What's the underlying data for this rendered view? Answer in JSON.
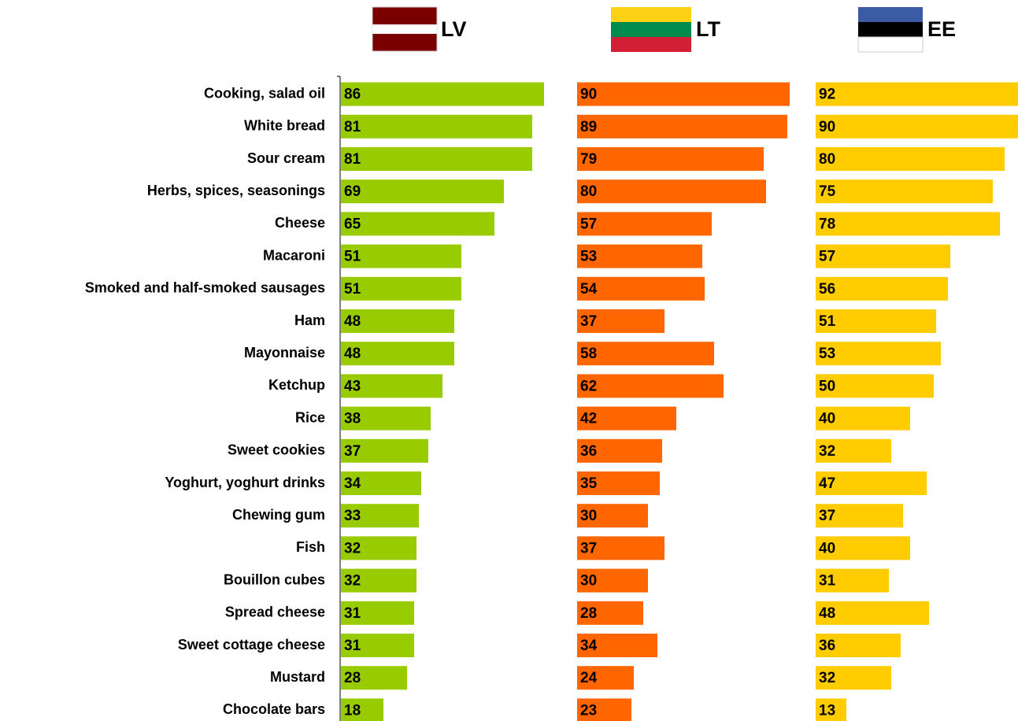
{
  "chart_data": {
    "type": "bar",
    "orientation": "horizontal",
    "categories": [
      "Cooking, salad oil",
      "White bread",
      "Sour cream",
      "Herbs, spices, seasonings",
      "Cheese",
      "Macaroni",
      "Smoked and half-smoked sausages",
      "Ham",
      "Mayonnaise",
      "Ketchup",
      "Rice",
      "Sweet cookies",
      "Yoghurt, yoghurt drinks",
      "Chewing gum",
      "Fish",
      "Bouillon cubes",
      "Spread cheese",
      "Sweet cottage cheese",
      "Mustard",
      "Chocolate bars"
    ],
    "series": [
      {
        "name": "LV",
        "color": "#99cc00",
        "values": [
          86,
          81,
          81,
          69,
          65,
          51,
          51,
          48,
          48,
          43,
          38,
          37,
          34,
          33,
          32,
          32,
          31,
          31,
          28,
          18
        ]
      },
      {
        "name": "LT",
        "color": "#ff6600",
        "values": [
          90,
          89,
          79,
          80,
          57,
          53,
          54,
          37,
          58,
          62,
          42,
          36,
          35,
          30,
          37,
          30,
          28,
          34,
          24,
          23
        ]
      },
      {
        "name": "EE",
        "color": "#ffcc00",
        "values": [
          92,
          90,
          80,
          75,
          78,
          57,
          56,
          51,
          53,
          50,
          40,
          32,
          47,
          37,
          40,
          31,
          48,
          36,
          32,
          13
        ]
      }
    ]
  }
}
